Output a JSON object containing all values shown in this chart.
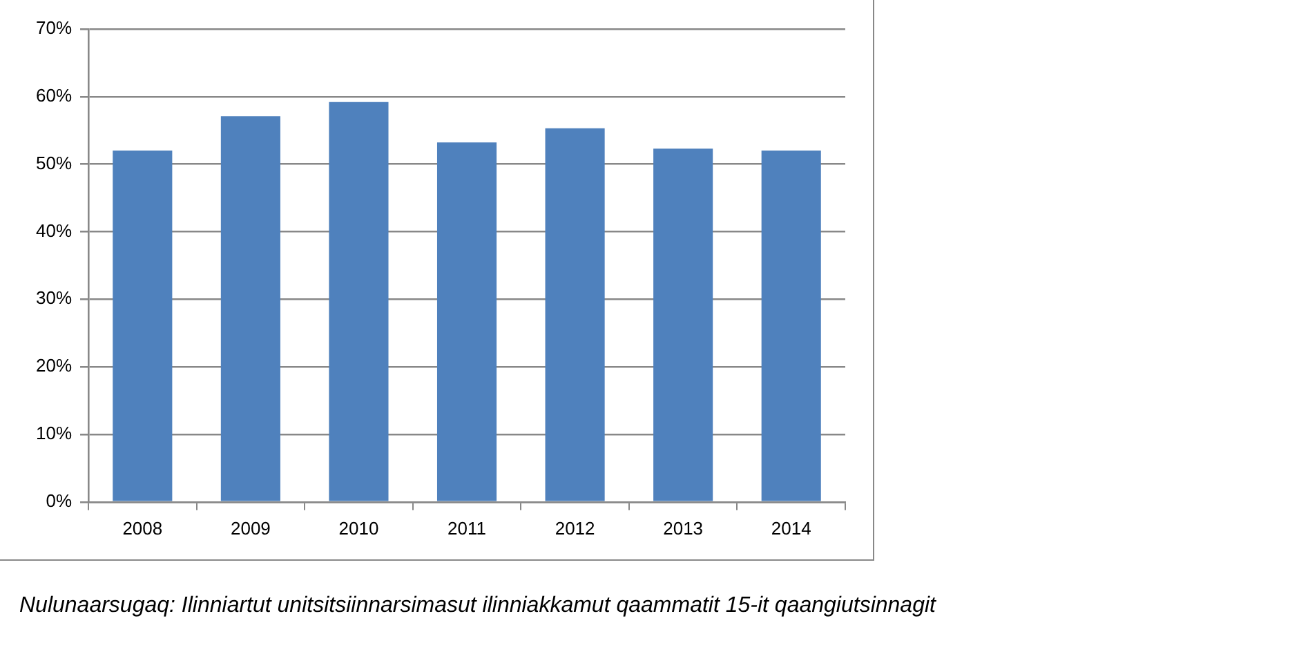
{
  "chart_data": {
    "type": "bar",
    "categories": [
      "2008",
      "2009",
      "2010",
      "2011",
      "2012",
      "2013",
      "2014"
    ],
    "values": [
      52,
      57.1,
      59.2,
      53.2,
      55.3,
      52.3,
      52
    ],
    "color": "#4f81bd",
    "ylim": [
      0,
      70
    ],
    "yticks": [
      {
        "value": 0,
        "label": "0%"
      },
      {
        "value": 10,
        "label": "10%"
      },
      {
        "value": 20,
        "label": "20%"
      },
      {
        "value": 30,
        "label": "30%"
      },
      {
        "value": 40,
        "label": "40%"
      },
      {
        "value": 50,
        "label": "50%"
      },
      {
        "value": 60,
        "label": "60%"
      },
      {
        "value": 70,
        "label": "70%"
      }
    ],
    "grid": "y",
    "legend": false,
    "annotations": [
      "Nulunaarsugaq: Ilinniartut unitsitsiinnarsimasut ilinniakkamut qaammatit 15-it qaangiutsinnagit"
    ]
  }
}
